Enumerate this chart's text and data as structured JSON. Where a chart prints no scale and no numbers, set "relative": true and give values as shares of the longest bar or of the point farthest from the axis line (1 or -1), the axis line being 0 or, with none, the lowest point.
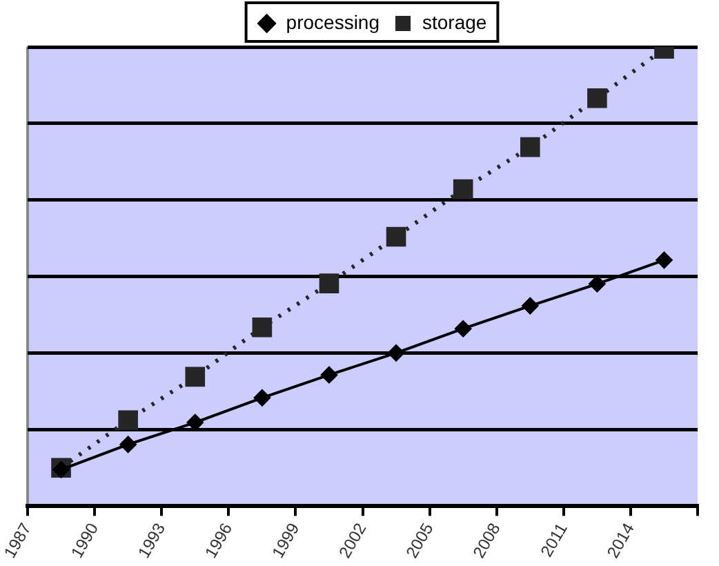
{
  "chart_data": {
    "type": "line",
    "relative": true,
    "x": [
      1988.5,
      1991.5,
      1994.5,
      1997.5,
      2000.5,
      2003.5,
      2006.5,
      2009.5,
      2012.5,
      2015.5
    ],
    "xlim": [
      1987,
      2017
    ],
    "xticks": [
      1987,
      1990,
      1993,
      1996,
      1999,
      2002,
      2005,
      2008,
      2011,
      2014,
      {
        "value": 2017,
        "label": null
      }
    ],
    "series": [
      {
        "name": "processing",
        "color": "#000000",
        "marker": "diamond",
        "line_style": "solid",
        "values": [
          0.08,
          0.135,
          0.183,
          0.237,
          0.287,
          0.335,
          0.388,
          0.438,
          0.486,
          0.538
        ]
      },
      {
        "name": "storage",
        "color": "#262626",
        "marker": "square",
        "line_style": "dotted",
        "values": [
          0.084,
          0.188,
          0.283,
          0.391,
          0.487,
          0.589,
          0.693,
          0.785,
          0.892,
          1
        ]
      }
    ],
    "grid": "y",
    "legend": "top"
  }
}
